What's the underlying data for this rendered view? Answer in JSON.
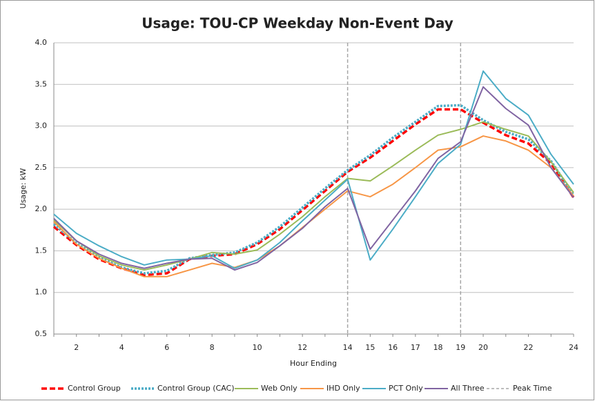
{
  "chart_data": {
    "type": "line",
    "title": "Usage: TOU-CP Weekday Non-Event Day",
    "x_label": "Hour Ending",
    "y_label": "Usage: kW",
    "categories": [
      null,
      "2",
      null,
      "4",
      null,
      "6",
      null,
      "8",
      null,
      "10",
      null,
      "12",
      null,
      "14",
      "15",
      "16",
      "17",
      "18",
      "19",
      "20",
      null,
      "22",
      null,
      "24"
    ],
    "ylim": [
      0.5,
      4.0
    ],
    "yticks": [
      0.5,
      {
        "value": 1,
        "label": "1.0"
      },
      1.5,
      {
        "value": 2,
        "label": "2.0"
      },
      2.5,
      {
        "value": 3,
        "label": "3.0"
      },
      3.5,
      {
        "value": 4,
        "label": "4.0"
      }
    ],
    "grid": true,
    "legend": "bottom",
    "series": [
      {
        "name": "Control Group",
        "color": "#ff0000",
        "dash": "dashed",
        "values": [
          1.79,
          1.57,
          1.4,
          1.29,
          1.21,
          1.23,
          1.4,
          1.44,
          1.46,
          1.58,
          1.76,
          1.99,
          2.22,
          2.45,
          2.62,
          2.82,
          3.02,
          3.2,
          3.2,
          3.04,
          2.89,
          2.79,
          2.55,
          2.14
        ]
      },
      {
        "name": "Control Group (CAC)",
        "color": "#4bacc6",
        "dash": "dotted",
        "values": [
          1.82,
          1.59,
          1.42,
          1.3,
          1.23,
          1.26,
          1.41,
          1.45,
          1.48,
          1.6,
          1.79,
          2.02,
          2.25,
          2.47,
          2.65,
          2.86,
          3.05,
          3.24,
          3.25,
          3.07,
          2.93,
          2.84,
          2.58,
          2.17
        ]
      },
      {
        "name": "Web Only",
        "color": "#9bbb59",
        "values": [
          1.87,
          1.62,
          1.44,
          1.33,
          1.27,
          1.33,
          1.4,
          1.48,
          1.46,
          1.51,
          1.7,
          1.91,
          2.15,
          2.37,
          2.34,
          2.52,
          2.71,
          2.89,
          2.96,
          3.05,
          2.96,
          2.88,
          2.57,
          2.2
        ]
      },
      {
        "name": "IHD Only",
        "color": "#f79646",
        "values": [
          1.85,
          1.58,
          1.41,
          1.29,
          1.19,
          1.19,
          1.27,
          1.35,
          1.3,
          1.39,
          1.56,
          1.78,
          2.0,
          2.22,
          2.15,
          2.3,
          2.5,
          2.71,
          2.75,
          2.88,
          2.82,
          2.71,
          2.5,
          2.16
        ]
      },
      {
        "name": "PCT Only",
        "color": "#4bacc6",
        "values": [
          1.94,
          1.71,
          1.56,
          1.43,
          1.33,
          1.39,
          1.4,
          1.44,
          1.29,
          1.39,
          1.6,
          1.86,
          2.11,
          2.36,
          1.39,
          1.76,
          2.15,
          2.55,
          2.78,
          3.66,
          3.33,
          3.13,
          2.66,
          2.3
        ]
      },
      {
        "name": "All Three",
        "color": "#8064a2",
        "values": [
          1.89,
          1.62,
          1.46,
          1.35,
          1.29,
          1.35,
          1.4,
          1.41,
          1.27,
          1.36,
          1.56,
          1.77,
          2.03,
          2.25,
          1.52,
          1.87,
          2.22,
          2.61,
          2.81,
          3.47,
          3.21,
          3.01,
          2.5,
          2.14
        ]
      }
    ],
    "peak_time": {
      "name": "Peak Time",
      "color": "#a6a6a6",
      "hours": [
        14,
        19
      ]
    }
  }
}
